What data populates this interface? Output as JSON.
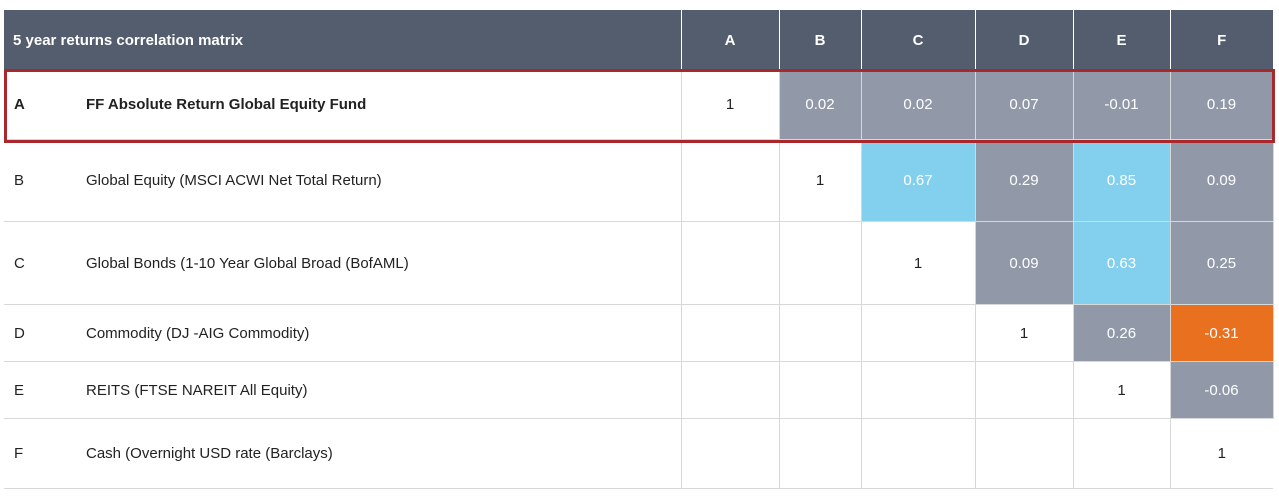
{
  "chart_data": {
    "type": "table",
    "title": "5 year returns correlation matrix",
    "columns": [
      "A",
      "B",
      "C",
      "D",
      "E",
      "F"
    ],
    "rows": [
      {
        "code": "A",
        "name": "FF Absolute Return Global Equity Fund",
        "bold": true,
        "highlighted": true,
        "values": [
          "1",
          "0.02",
          "0.02",
          "0.07",
          "-0.01",
          "0.19"
        ]
      },
      {
        "code": "B",
        "name": "Global Equity (MSCI ACWI Net Total Return)",
        "bold": false,
        "highlighted": false,
        "values": [
          "",
          "1",
          "0.67",
          "0.29",
          "0.85",
          "0.09"
        ]
      },
      {
        "code": "C",
        "name": "Global Bonds (1-10 Year Global Broad (BofAML)",
        "bold": false,
        "highlighted": false,
        "values": [
          "",
          "",
          "1",
          "0.09",
          "0.63",
          "0.25"
        ]
      },
      {
        "code": "D",
        "name": "Commodity (DJ -AIG Commodity)",
        "bold": false,
        "highlighted": false,
        "values": [
          "",
          "",
          "",
          "1",
          "0.26",
          "-0.31"
        ]
      },
      {
        "code": "E",
        "name": "REITS (FTSE NAREIT All Equity)",
        "bold": false,
        "highlighted": false,
        "values": [
          "",
          "",
          "",
          "",
          "1",
          "-0.06"
        ]
      },
      {
        "code": "F",
        "name": "Cash (Overnight USD rate (Barclays)",
        "bold": false,
        "highlighted": false,
        "values": [
          "",
          "",
          "",
          "",
          "",
          "1"
        ]
      }
    ],
    "fills": [
      [
        "none",
        "gray",
        "gray",
        "gray",
        "gray",
        "gray"
      ],
      [
        "none",
        "none",
        "blue",
        "gray",
        "blue",
        "gray"
      ],
      [
        "none",
        "none",
        "none",
        "gray",
        "blue",
        "gray"
      ],
      [
        "none",
        "none",
        "none",
        "none",
        "gray",
        "orange"
      ],
      [
        "none",
        "none",
        "none",
        "none",
        "none",
        "gray"
      ],
      [
        "none",
        "none",
        "none",
        "none",
        "none",
        "none"
      ]
    ],
    "colors": {
      "header_bg": "#545d6e",
      "gray": "#9199a8",
      "blue": "#82d0ee",
      "orange": "#e8701e",
      "highlight_border": "#a8282b"
    }
  }
}
